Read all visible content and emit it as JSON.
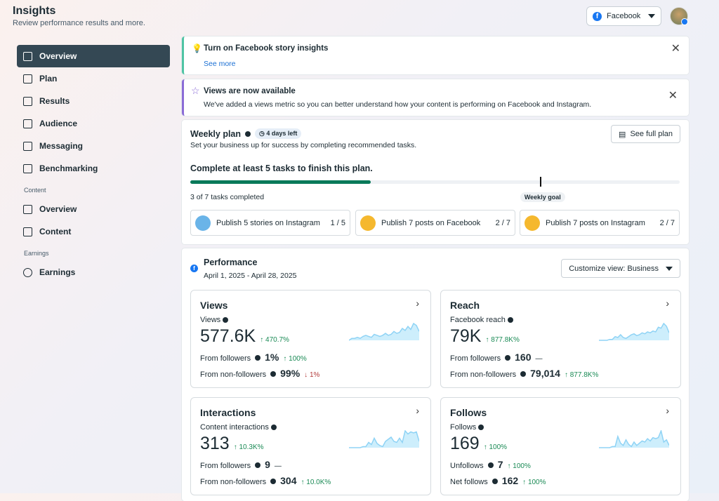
{
  "header": {
    "title": "Insights",
    "subtitle": "Review performance results and more.",
    "account_selector": "Facebook"
  },
  "sidebar": {
    "items": [
      {
        "label": "Overview",
        "active": true
      },
      {
        "label": "Plan"
      },
      {
        "label": "Results"
      },
      {
        "label": "Audience"
      },
      {
        "label": "Messaging"
      },
      {
        "label": "Benchmarking"
      }
    ],
    "content_section": "Content",
    "content_items": [
      {
        "label": "Overview"
      },
      {
        "label": "Content"
      }
    ],
    "earnings_section": "Earnings",
    "earnings_items": [
      {
        "label": "Earnings"
      }
    ]
  },
  "banners": [
    {
      "title": "Turn on Facebook story insights",
      "link": "See more"
    },
    {
      "title": "Views are now available",
      "text": "We've added a views metric so you can better understand how your content is performing on Facebook and Instagram."
    }
  ],
  "weekly_plan": {
    "title": "Weekly plan",
    "days_left": "4 days left",
    "description": "Set your business up for success by completing recommended tasks.",
    "button": "See full plan",
    "goal_text": "Complete at least 5 tasks to finish this plan.",
    "progress_completed": 3,
    "progress_total": 7,
    "goal_tasks": 5,
    "progress_text": "3 of 7 tasks completed",
    "goal_label": "Weekly goal",
    "tasks": [
      {
        "label": "Publish 5 stories on Instagram",
        "progress": "1 / 5"
      },
      {
        "label": "Publish 7 posts on Facebook",
        "progress": "2 / 7"
      },
      {
        "label": "Publish 7 posts on Instagram",
        "progress": "2 / 7"
      }
    ]
  },
  "performance": {
    "title": "Performance",
    "date_range": "April 1, 2025 - April 28, 2025",
    "customize": "Customize view: Business",
    "cards": [
      {
        "title": "Views",
        "metric": "Views",
        "value": "577.6K",
        "change": "470.7%",
        "rows": [
          {
            "label": "From followers",
            "value": "1%",
            "change": "100%",
            "dir": "up"
          },
          {
            "label": "From non-followers",
            "value": "99%",
            "change": "1%",
            "dir": "down"
          }
        ]
      },
      {
        "title": "Reach",
        "metric": "Facebook reach",
        "value": "79K",
        "change": "877.8K%",
        "rows": [
          {
            "label": "From followers",
            "value": "160",
            "change": "—",
            "dir": "none"
          },
          {
            "label": "From non-followers",
            "value": "79,014",
            "change": "877.8K%",
            "dir": "up"
          }
        ]
      },
      {
        "title": "Interactions",
        "metric": "Content interactions",
        "value": "313",
        "change": "10.3K%",
        "rows": [
          {
            "label": "From followers",
            "value": "9",
            "change": "—",
            "dir": "none"
          },
          {
            "label": "From non-followers",
            "value": "304",
            "change": "10.0K%",
            "dir": "up"
          }
        ]
      },
      {
        "title": "Follows",
        "metric": "Follows",
        "value": "169",
        "change": "100%",
        "rows": [
          {
            "label": "Unfollows",
            "value": "7",
            "change": "100%",
            "dir": "up"
          },
          {
            "label": "Net follows",
            "value": "162",
            "change": "100%",
            "dir": "up"
          }
        ]
      }
    ]
  },
  "colors": {
    "progress": "#0a7a5a",
    "active_nav": "#344854",
    "positive": "#1a8a55",
    "negative": "#b23b3b",
    "spark": "#a6dcf7"
  }
}
